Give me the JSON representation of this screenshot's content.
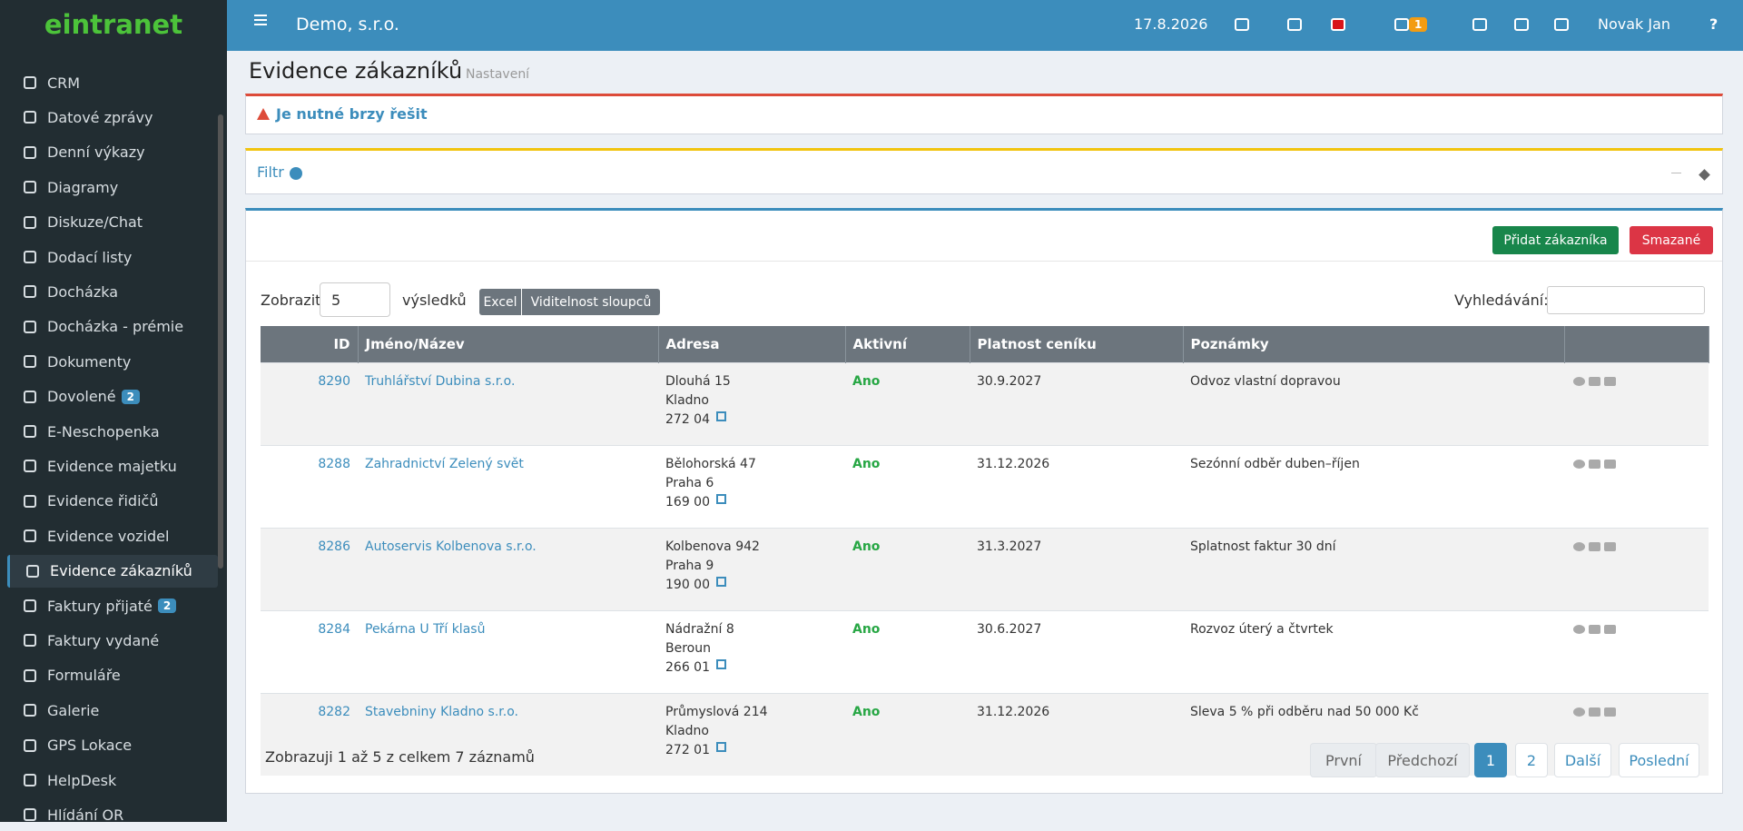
{
  "header": {
    "logo": "eintranet",
    "company": "Demo, s.r.o.",
    "date": "17.8.2026",
    "notifications": 1,
    "user": "Novak Jan",
    "help": "?"
  },
  "sidebar": {
    "items": [
      {
        "label": "CRM"
      },
      {
        "label": "Datové zprávy"
      },
      {
        "label": "Denní výkazy"
      },
      {
        "label": "Diagramy"
      },
      {
        "label": "Diskuze/Chat"
      },
      {
        "label": "Dodací listy"
      },
      {
        "label": "Docházka"
      },
      {
        "label": "Docházka - prémie"
      },
      {
        "label": "Dokumenty"
      },
      {
        "label": "Dovolené",
        "badge": 2
      },
      {
        "label": "E-Neschopenka"
      },
      {
        "label": "Evidence majetku"
      },
      {
        "label": "Evidence řidičů"
      },
      {
        "label": "Evidence vozidel"
      },
      {
        "label": "Evidence zákazníků",
        "active": true
      },
      {
        "label": "Faktury přijaté",
        "badge": 2
      },
      {
        "label": "Faktury vydané"
      },
      {
        "label": "Formuláře"
      },
      {
        "label": "Galerie"
      },
      {
        "label": "GPS Lokace"
      },
      {
        "label": "HelpDesk"
      },
      {
        "label": "Hlídání OR"
      }
    ]
  },
  "page": {
    "title": "Evidence zákazníků",
    "settings": "Nastavení",
    "alert": "Je nutné brzy řešit",
    "filter": "Filtr",
    "add_button": "Přidat zákazníka",
    "deleted_button": "Smazané",
    "show_label": "Zobrazit",
    "page_size": 5,
    "results_label": "výsledků",
    "excel": "Excel",
    "columns_button": "Viditelnost sloupců",
    "search_label": "Vyhledávání:"
  },
  "table": {
    "columns": [
      "ID",
      "Jméno/Název",
      "Adresa",
      "Aktivní",
      "Platnost ceníku",
      "Poznámky"
    ],
    "rows": [
      {
        "id": 8290,
        "name": "Truhlářství Dubina s.r.o.",
        "street": "Dlouhá 15",
        "city": "Kladno",
        "zip": "272 04",
        "active": "Ano",
        "valid": "30.9.2027",
        "note": "Odvoz vlastní dopravou"
      },
      {
        "id": 8288,
        "name": "Zahradnictví Zelený svět",
        "street": "Bělohorská 47",
        "city": "Praha 6",
        "zip": "169 00",
        "active": "Ano",
        "valid": "31.12.2026",
        "note": "Sezónní odběr duben–říjen"
      },
      {
        "id": 8286,
        "name": "Autoservis Kolbenova s.r.o.",
        "street": "Kolbenova 942",
        "city": "Praha 9",
        "zip": "190 00",
        "active": "Ano",
        "valid": "31.3.2027",
        "note": "Splatnost faktur 30 dní"
      },
      {
        "id": 8284,
        "name": "Pekárna U Tří klasů",
        "street": "Nádražní 8",
        "city": "Beroun",
        "zip": "266 01",
        "active": "Ano",
        "valid": "30.6.2027",
        "note": "Rozvoz úterý a čtvrtek"
      },
      {
        "id": 8282,
        "name": "Stavebniny Kladno s.r.o.",
        "street": "Průmyslová 214",
        "city": "Kladno",
        "zip": "272 01",
        "active": "Ano",
        "valid": "31.12.2026",
        "note": "Sleva 5 % při odběru nad 50 000 Kč"
      }
    ],
    "info": "Zobrazuji 1 až 5 z celkem 7 záznamů"
  },
  "pagination": {
    "first": "První",
    "prev": "Předchozí",
    "pages": [
      1,
      2
    ],
    "current": 1,
    "next": "Další",
    "last": "Poslední"
  }
}
